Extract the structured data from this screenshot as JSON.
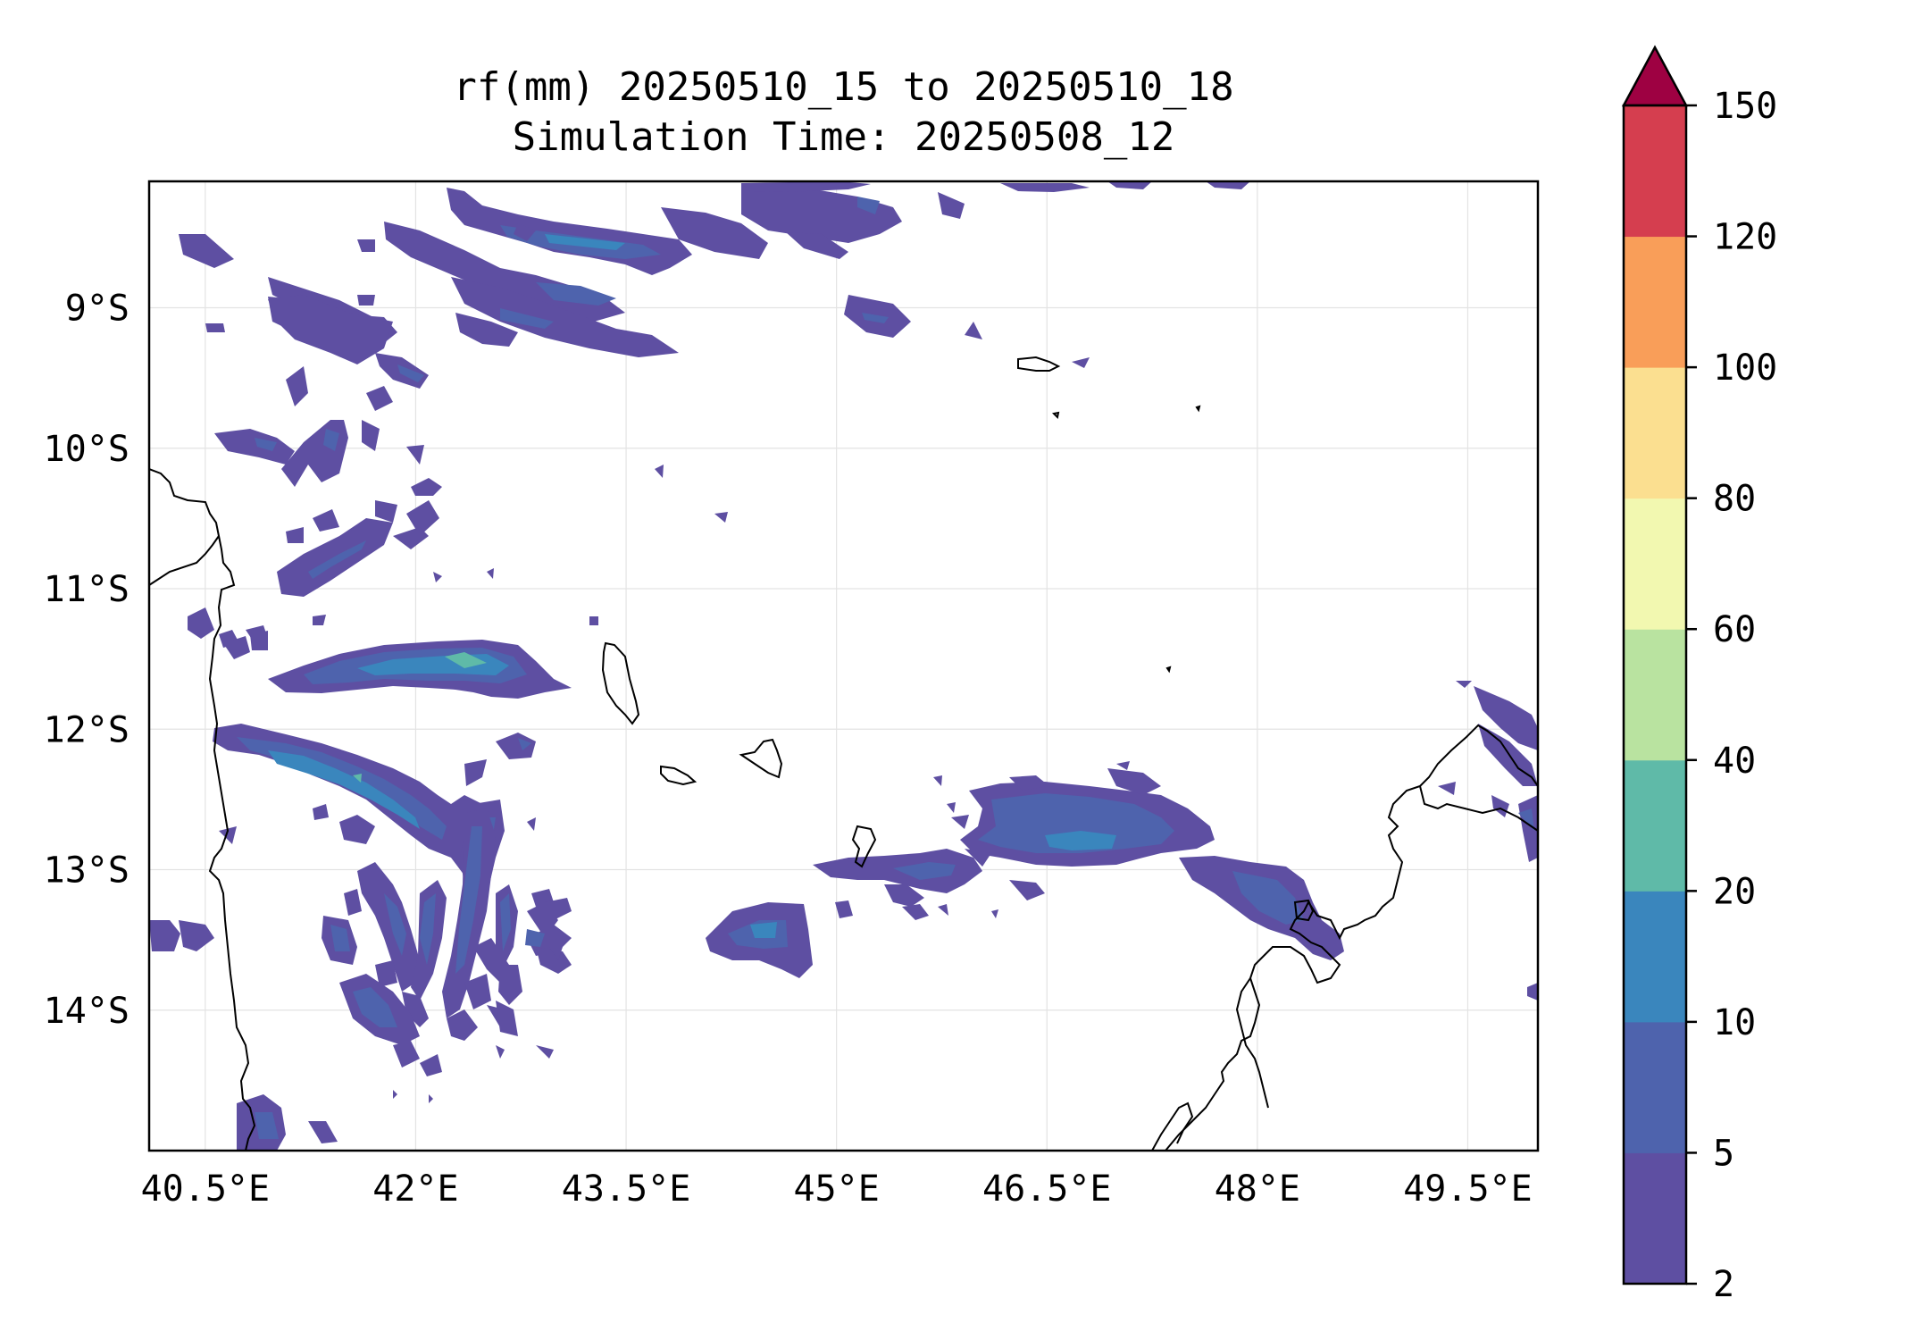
{
  "title": {
    "line1": "rf(mm) 20250510_15 to 20250510_18",
    "line2": "Simulation Time: 20250508_12"
  },
  "map": {
    "lon_range": [
      40.1,
      50.0
    ],
    "lat_range": [
      -15.0,
      -8.1
    ],
    "x_ticks": [
      {
        "value": 40.5,
        "label": "40.5°E"
      },
      {
        "value": 42.0,
        "label": "42°E"
      },
      {
        "value": 43.5,
        "label": "43.5°E"
      },
      {
        "value": 45.0,
        "label": "45°E"
      },
      {
        "value": 46.5,
        "label": "46.5°E"
      },
      {
        "value": 48.0,
        "label": "48°E"
      },
      {
        "value": 49.5,
        "label": "49.5°E"
      }
    ],
    "y_ticks": [
      {
        "value": -9,
        "label": "9°S"
      },
      {
        "value": -10,
        "label": "10°S"
      },
      {
        "value": -11,
        "label": "11°S"
      },
      {
        "value": -12,
        "label": "12°S"
      },
      {
        "value": -13,
        "label": "13°S"
      },
      {
        "value": -14,
        "label": "14°S"
      }
    ],
    "grid": true,
    "rain_colors": [
      "#5e4fa2",
      "#4e63ad",
      "#3a86bd",
      "#5fbaa8"
    ]
  },
  "colorbar": {
    "levels": [
      {
        "value": 2,
        "label": "2"
      },
      {
        "value": 5,
        "label": "5"
      },
      {
        "value": 10,
        "label": "10"
      },
      {
        "value": 20,
        "label": "20"
      },
      {
        "value": 40,
        "label": "40"
      },
      {
        "value": 60,
        "label": "60"
      },
      {
        "value": 80,
        "label": "80"
      },
      {
        "value": 100,
        "label": "100"
      },
      {
        "value": 120,
        "label": "120"
      },
      {
        "value": 150,
        "label": "150"
      }
    ],
    "colors": [
      "#5e4fa2",
      "#4e63ad",
      "#3a86bd",
      "#5fbaa8",
      "#b9e3a0",
      "#f2f8b0",
      "#fbdf90",
      "#f99e59",
      "#d53e4f"
    ],
    "extend_color": "#9e0142"
  }
}
